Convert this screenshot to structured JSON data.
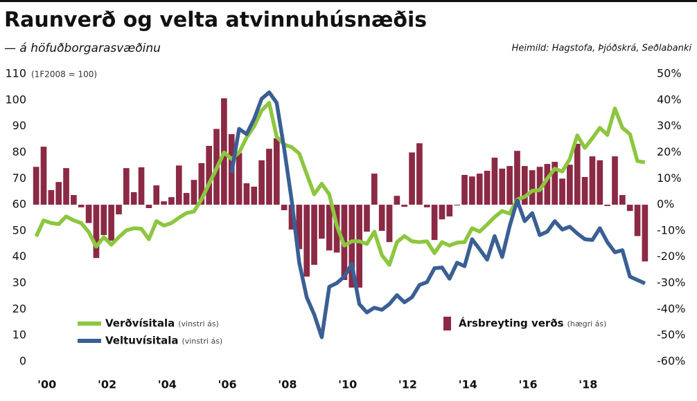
{
  "chart_data": {
    "type": "combo",
    "title": "Raunverð og velta atvinnuhúsnæðis",
    "subtitle": "— á höfuðborgarasvæðinu",
    "source": "Heimild: Hagstofa, Þjóðskrá, Seðlabanki",
    "y_axis_note": "(1F2008 = 100)",
    "x": [
      2000,
      2000.25,
      2000.5,
      2000.75,
      2001,
      2001.25,
      2001.5,
      2001.75,
      2002,
      2002.25,
      2002.5,
      2002.75,
      2003,
      2003.25,
      2003.5,
      2003.75,
      2004,
      2004.25,
      2004.5,
      2004.75,
      2005,
      2005.25,
      2005.5,
      2005.75,
      2006,
      2006.25,
      2006.5,
      2006.75,
      2007,
      2007.25,
      2007.5,
      2007.75,
      2008,
      2008.25,
      2008.5,
      2008.75,
      2009,
      2009.25,
      2009.5,
      2009.75,
      2010,
      2010.25,
      2010.5,
      2010.75,
      2011,
      2011.25,
      2011.5,
      2011.75,
      2012,
      2012.25,
      2012.5,
      2012.75,
      2013,
      2013.25,
      2013.5,
      2013.75,
      2014,
      2014.25,
      2014.5,
      2014.75,
      2015,
      2015.25,
      2015.5,
      2015.75,
      2016,
      2016.25,
      2016.5,
      2016.75,
      2017,
      2017.25,
      2017.5,
      2017.75,
      2018,
      2018.25,
      2018.5,
      2018.75,
      2019,
      2019.25,
      2019.5,
      2019.75,
      2020,
      2020.25
    ],
    "xlim": [
      1999.72,
      2020.46
    ],
    "xticks": [
      {
        "value": 2000,
        "label": "'00"
      },
      {
        "value": 2002,
        "label": "'02"
      },
      {
        "value": 2004,
        "label": "'04"
      },
      {
        "value": 2006,
        "label": "'06"
      },
      {
        "value": 2008,
        "label": "'08"
      },
      {
        "value": 2010,
        "label": "'10"
      },
      {
        "value": 2012,
        "label": "'12"
      },
      {
        "value": 2014,
        "label": "'14"
      },
      {
        "value": 2016,
        "label": "'16"
      },
      {
        "value": 2018,
        "label": "'18"
      }
    ],
    "ylim": [
      0,
      110
    ],
    "yticks": [
      0,
      10,
      20,
      30,
      40,
      50,
      60,
      70,
      80,
      90,
      100,
      110
    ],
    "y2lim": [
      -60,
      50
    ],
    "y2ticks": [
      {
        "value": -60,
        "label": "-60%"
      },
      {
        "value": -50,
        "label": "-50%"
      },
      {
        "value": -40,
        "label": "-40%"
      },
      {
        "value": -30,
        "label": "-30%"
      },
      {
        "value": -20,
        "label": "-20%"
      },
      {
        "value": -10,
        "label": "-10%"
      },
      {
        "value": 0,
        "label": "0%"
      },
      {
        "value": 10,
        "label": "10%"
      },
      {
        "value": 20,
        "label": "20%"
      },
      {
        "value": 30,
        "label": "30%"
      },
      {
        "value": 40,
        "label": "40%"
      },
      {
        "value": 50,
        "label": "50%"
      }
    ],
    "grid": false,
    "series": [
      {
        "name": "Ársbreyting verðs",
        "note": "(hægri ás)",
        "type": "bar",
        "axis": "y2",
        "color": "#8b2a45",
        "values": [
          14.5,
          22.2,
          5.6,
          8.7,
          14,
          3.7,
          -1,
          -7,
          -20.4,
          -11.6,
          -13.8,
          -3.7,
          14,
          4.8,
          14.3,
          -1.3,
          7.4,
          1.3,
          2.9,
          15,
          4.5,
          9.5,
          15.9,
          22.5,
          29,
          40.7,
          27,
          19.8,
          8.2,
          6.9,
          17,
          21.4,
          25.4,
          -2.1,
          -9.5,
          -17,
          -27.5,
          -23,
          -13,
          -17.5,
          -18.3,
          -28.8,
          -31.7,
          -31.7,
          -10.3,
          11.9,
          -10,
          -14.3,
          3.4,
          -0.8,
          20,
          23.5,
          -1,
          -13.5,
          -5.6,
          -4.5,
          -0.3,
          11.4,
          10.8,
          11.9,
          13,
          18,
          13.8,
          14.8,
          20.6,
          14.8,
          13.2,
          14.5,
          15.6,
          16.4,
          10,
          15.3,
          23.3,
          10.6,
          18.5,
          17,
          -0.5,
          18.5,
          3.7,
          -2.4,
          -12,
          -21.7
        ]
      },
      {
        "name": "Verðvísitala",
        "note": "(vinstri ás)",
        "type": "line",
        "axis": "y",
        "color": "#8dc63f",
        "values": [
          47.9,
          54,
          53,
          52.6,
          55.5,
          54,
          53,
          49.5,
          44,
          47.6,
          44.7,
          47.6,
          50.2,
          51,
          50.8,
          46.8,
          53.7,
          52,
          53,
          55,
          56.8,
          57.4,
          62,
          68,
          73.8,
          80,
          77.5,
          80,
          85.7,
          90,
          96,
          99,
          86,
          83,
          82,
          79.6,
          71.7,
          64,
          68,
          64,
          52,
          44.4,
          46,
          46,
          45,
          49.7,
          40.7,
          37,
          45.7,
          48,
          46,
          45.7,
          46,
          41.5,
          45.7,
          44.4,
          45.5,
          45.7,
          51,
          49.7,
          52.4,
          55.3,
          57.6,
          56.6,
          62,
          63,
          65.3,
          65.6,
          70,
          73.8,
          72.7,
          77.5,
          86.5,
          81.7,
          85.4,
          89.4,
          86.7,
          96.8,
          89.4,
          87,
          76.7,
          76.2
        ]
      },
      {
        "name": "Veltuvísitala",
        "note": "(vinstri ás)",
        "type": "line",
        "axis": "y",
        "color": "#3a5f94",
        "values": [
          null,
          null,
          null,
          null,
          null,
          null,
          null,
          null,
          null,
          null,
          null,
          null,
          null,
          null,
          null,
          null,
          null,
          null,
          null,
          null,
          null,
          null,
          null,
          null,
          null,
          null,
          72.2,
          89,
          87,
          92.8,
          100.5,
          103,
          99,
          81.4,
          61.6,
          37.8,
          24.6,
          18,
          9.3,
          28.6,
          30,
          32.5,
          37.3,
          22,
          18.8,
          20.6,
          19.8,
          22,
          25.4,
          22.7,
          24.6,
          29.3,
          30.4,
          35.7,
          36,
          31.7,
          37.8,
          36.5,
          46.8,
          43,
          39,
          48,
          40,
          51.8,
          61.6,
          53.7,
          56.8,
          48.4,
          49.7,
          53.7,
          50.5,
          51.6,
          49,
          46.8,
          46.5,
          51,
          45.7,
          41.8,
          42.6,
          32.5,
          31.2,
          29.9
        ]
      }
    ]
  }
}
